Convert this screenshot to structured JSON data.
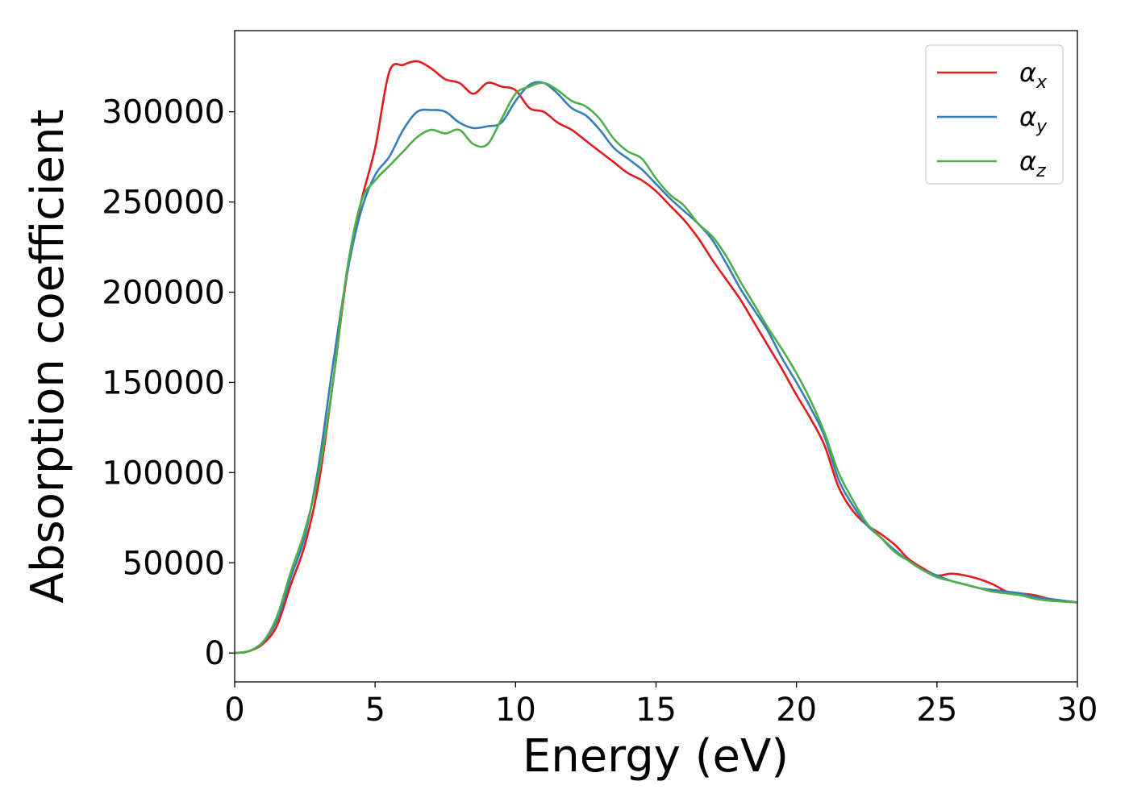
{
  "chart_data": {
    "type": "line",
    "title": "",
    "xlabel": "Energy (eV)",
    "ylabel": "Absorption coefficient",
    "xlim": [
      0,
      30
    ],
    "ylim": [
      -16000,
      345000
    ],
    "xticks": [
      0,
      5,
      10,
      15,
      20,
      25,
      30
    ],
    "yticks": [
      0,
      50000,
      100000,
      150000,
      200000,
      250000,
      300000
    ],
    "grid": false,
    "legend_position": "top-right",
    "x": [
      0,
      0.5,
      1.0,
      1.5,
      2.0,
      2.5,
      3.0,
      3.5,
      4.0,
      4.5,
      5.0,
      5.5,
      6.0,
      6.5,
      7.0,
      7.5,
      8.0,
      8.5,
      9.0,
      9.5,
      10.0,
      10.5,
      11.0,
      11.5,
      12.0,
      12.5,
      13.0,
      13.5,
      14.0,
      14.5,
      15.0,
      15.5,
      16.0,
      16.5,
      17.0,
      17.5,
      18.0,
      18.5,
      19.0,
      19.5,
      20.0,
      20.5,
      21.0,
      21.5,
      22.0,
      22.5,
      23.0,
      23.5,
      24.0,
      24.5,
      25.0,
      25.5,
      26.0,
      26.5,
      27.0,
      27.5,
      28.0,
      28.5,
      29.0,
      29.5,
      30.0
    ],
    "series": [
      {
        "name": "α",
        "subscript": "x",
        "color": "#e41a1c",
        "values": [
          0,
          1000,
          5000,
          15000,
          38000,
          60000,
          95000,
          150000,
          210000,
          250000,
          280000,
          322000,
          326000,
          328000,
          324000,
          318000,
          316000,
          310000,
          316000,
          314000,
          312000,
          302000,
          300000,
          294000,
          290000,
          284000,
          278000,
          272000,
          266000,
          262000,
          256000,
          248000,
          240000,
          230000,
          218000,
          207000,
          196000,
          183000,
          170000,
          157000,
          143000,
          130000,
          115000,
          92000,
          79000,
          71000,
          66000,
          60000,
          52000,
          47000,
          43000,
          44000,
          43000,
          41000,
          38000,
          34000,
          33000,
          32000,
          30000,
          29000,
          28000
        ]
      },
      {
        "name": "α",
        "subscript": "y",
        "color": "#377eb8",
        "values": [
          0,
          1000,
          6000,
          18000,
          42000,
          65000,
          105000,
          160000,
          210000,
          245000,
          265000,
          275000,
          290000,
          300000,
          301000,
          300000,
          294000,
          291000,
          292000,
          294000,
          306000,
          315000,
          316000,
          310000,
          302000,
          298000,
          290000,
          280000,
          274000,
          268000,
          260000,
          252000,
          245000,
          238000,
          229000,
          216000,
          202000,
          190000,
          178000,
          163000,
          150000,
          136000,
          120000,
          96000,
          82000,
          71000,
          64000,
          57000,
          51000,
          46000,
          43000,
          40000,
          38000,
          36000,
          35000,
          34000,
          33000,
          31000,
          30000,
          29000,
          28000
        ]
      },
      {
        "name": "α",
        "subscript": "z",
        "color": "#4daf4a",
        "values": [
          0,
          1000,
          6000,
          20000,
          45000,
          68000,
          100000,
          150000,
          212000,
          250000,
          262000,
          270000,
          278000,
          286000,
          290000,
          288000,
          290000,
          282000,
          282000,
          296000,
          310000,
          314000,
          316000,
          312000,
          306000,
          303000,
          296000,
          285000,
          278000,
          274000,
          263000,
          254000,
          248000,
          238000,
          231000,
          220000,
          206000,
          193000,
          180000,
          168000,
          155000,
          140000,
          122000,
          100000,
          85000,
          72000,
          64000,
          56000,
          51000,
          46000,
          42000,
          40000,
          38000,
          36000,
          34000,
          33000,
          32000,
          30000,
          29000,
          28500,
          28000
        ]
      }
    ]
  }
}
